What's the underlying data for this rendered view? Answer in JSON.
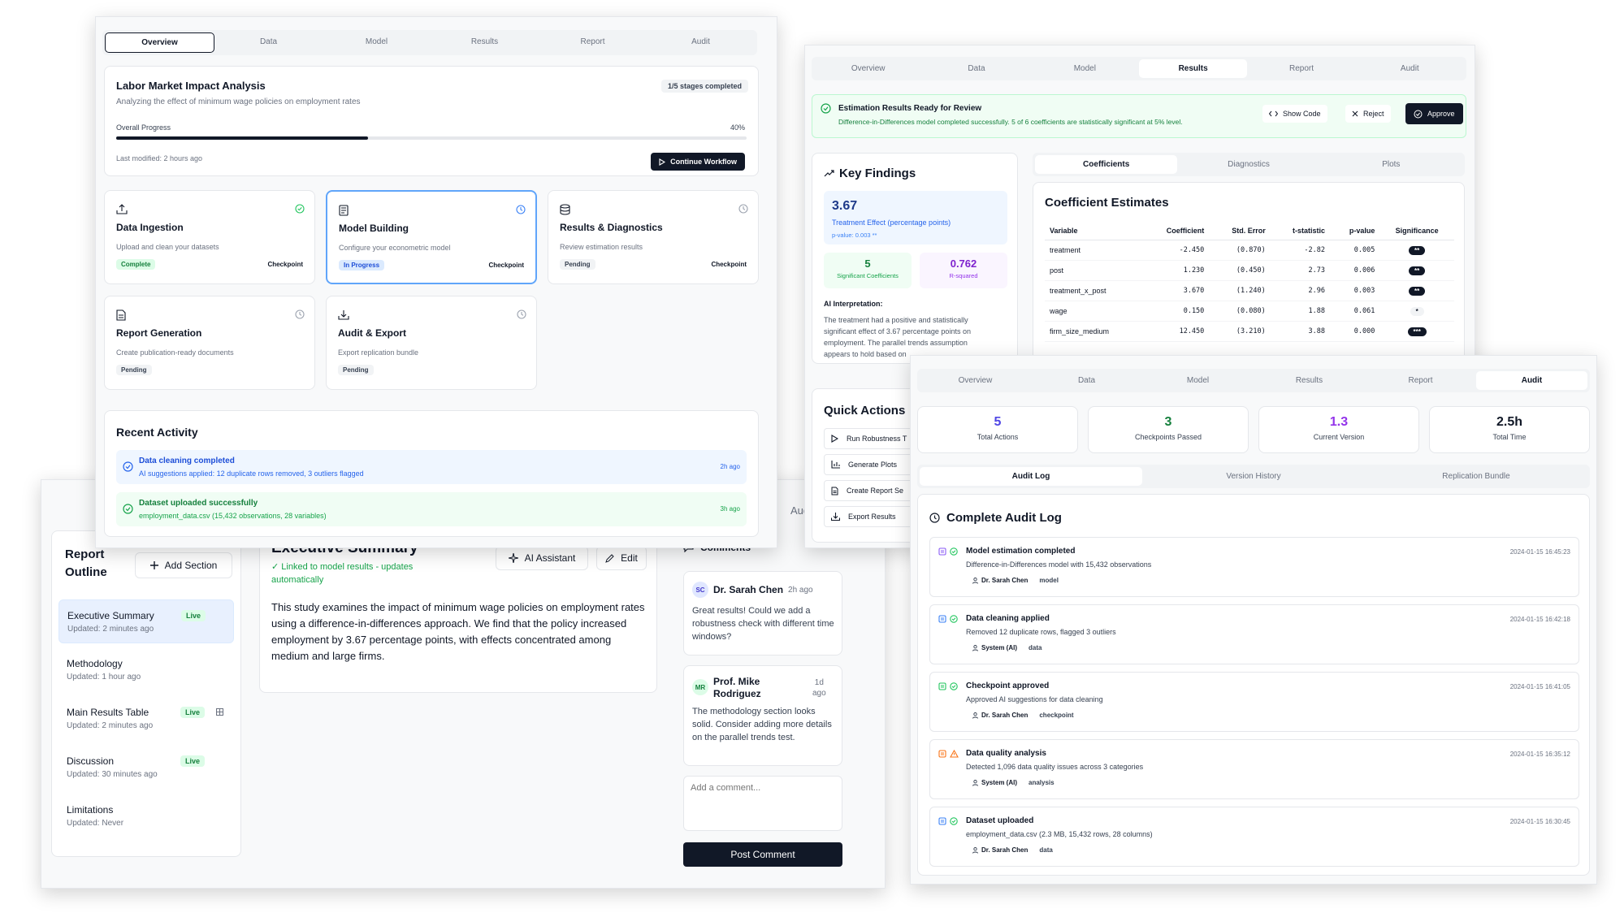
{
  "w1": {
    "tabs": [
      "Overview",
      "Data",
      "Model",
      "Results",
      "Report",
      "Audit"
    ],
    "project": {
      "title": "Labor Market Impact Analysis",
      "subtitle": "Analyzing the effect of minimum wage policies on employment rates",
      "stages_badge": "1/5 stages completed",
      "progress_label": "Overall Progress",
      "progress_pct_text": "40%",
      "progress_value": 0.4,
      "last_modified": "Last modified: 2 hours ago",
      "continue_label": "Continue Workflow"
    },
    "stages": [
      {
        "title": "Data Ingestion",
        "desc": "Upload and clean your datasets",
        "status": "Complete",
        "checkpoint": "Checkpoint"
      },
      {
        "title": "Model Building",
        "desc": "Configure your econometric model",
        "status": "In Progress",
        "checkpoint": "Checkpoint"
      },
      {
        "title": "Results & Diagnostics",
        "desc": "Review estimation results",
        "status": "Pending",
        "checkpoint": "Checkpoint"
      },
      {
        "title": "Report Generation",
        "desc": "Create publication-ready documents",
        "status": "Pending"
      },
      {
        "title": "Audit & Export",
        "desc": "Export replication bundle",
        "status": "Pending"
      }
    ],
    "activity": {
      "title": "Recent Activity",
      "items": [
        {
          "title": "Data cleaning completed",
          "sub": "AI suggestions applied: 12 duplicate rows removed, 3 outliers flagged",
          "time": "2h ago"
        },
        {
          "title": "Dataset uploaded successfully",
          "sub": "employment_data.csv (15,432 observations, 28 variables)",
          "time": "3h ago"
        }
      ]
    }
  },
  "w2": {
    "tabs": [
      "Overview",
      "Data",
      "Model",
      "Results",
      "Report",
      "Audit"
    ],
    "banner": {
      "title": "Estimation Results Ready for Review",
      "sub": "Difference-in-Differences model completed successfully. 5 of 6 coefficients are statistically significant at 5% level.",
      "show_code": "Show Code",
      "reject": "Reject",
      "approve": "Approve"
    },
    "findings": {
      "title": "Key Findings",
      "effect_value": "3.67",
      "effect_label": "Treatment Effect (percentage points)",
      "effect_p": "p-value: 0.003 **",
      "sig_value": "5",
      "sig_label": "Significant Coefficients",
      "r2_value": "0.762",
      "r2_label": "R-squared",
      "ai_title": "AI Interpretation:",
      "ai_text": "The treatment had a positive and statistically significant effect of 3.67 percentage points on employment. The parallel trends assumption appears to hold based on"
    },
    "quick": {
      "title": "Quick Actions",
      "items": [
        "Run Robustness T",
        "Generate Plots",
        "Create Report Se",
        "Export Results"
      ]
    },
    "subtabs": [
      "Coefficients",
      "Diagnostics",
      "Plots"
    ],
    "coef": {
      "title": "Coefficient Estimates",
      "headers": [
        "Variable",
        "Coefficient",
        "Std. Error",
        "t-statistic",
        "p-value",
        "Significance"
      ],
      "rows": [
        [
          "treatment",
          "-2.450",
          "(0.870)",
          "-2.82",
          "0.005",
          "**"
        ],
        [
          "post",
          "1.230",
          "(0.450)",
          "2.73",
          "0.006",
          "**"
        ],
        [
          "treatment_x_post",
          "3.670",
          "(1.240)",
          "2.96",
          "0.003",
          "**"
        ],
        [
          "wage",
          "0.150",
          "(0.080)",
          "1.88",
          "0.061",
          "*"
        ],
        [
          "firm_size_medium",
          "12.450",
          "(3.210)",
          "3.88",
          "0.000",
          "***"
        ]
      ]
    }
  },
  "w3": {
    "partial_tab": "Aud",
    "outline": {
      "title_1": "Report",
      "title_2": "Outline",
      "add_label": "Add Section",
      "sections": [
        {
          "name": "Executive Summary",
          "updated": "Updated: 2 minutes ago",
          "badge": "Live"
        },
        {
          "name": "Methodology",
          "updated": "Updated: 1 hour ago",
          "badge": ""
        },
        {
          "name": "Main Results Table",
          "updated": "Updated: 2 minutes ago",
          "badge": "Live"
        },
        {
          "name": "Discussion",
          "updated": "Updated: 30 minutes ago",
          "badge": "Live"
        },
        {
          "name": "Limitations",
          "updated": "Updated: Never",
          "badge": ""
        }
      ]
    },
    "editor": {
      "title": "Executive Summary",
      "linked_1": "✓ Linked to model results - updates",
      "linked_2": "automatically",
      "ai_label": "AI Assistant",
      "edit_label": "Edit",
      "body": "This study examines the impact of minimum wage policies on employment rates using a difference-in-differences approach. We find that the policy increased employment by 3.67 percentage points, with effects concentrated among medium and large firms."
    },
    "comments": {
      "title": "Comments",
      "items": [
        {
          "initials": "SC",
          "name": "Dr. Sarah Chen",
          "time": "2h ago",
          "text": "Great results! Could we add a robustness check with different time windows?"
        },
        {
          "initials": "MR",
          "name_1": "Prof. Mike",
          "name_2": "Rodriguez",
          "time_1": "1d",
          "time_2": "ago",
          "text": "The methodology section looks solid. Consider adding more details on the parallel trends test."
        }
      ],
      "placeholder": "Add a comment...",
      "post_label": "Post Comment"
    }
  },
  "w4": {
    "tabs": [
      "Overview",
      "Data",
      "Model",
      "Results",
      "Report",
      "Audit"
    ],
    "stats": [
      {
        "value": "5",
        "label": "Total Actions",
        "color": "#4f46e5"
      },
      {
        "value": "3",
        "label": "Checkpoints Passed",
        "color": "#15803d"
      },
      {
        "value": "1.3",
        "label": "Current Version",
        "color": "#9333ea"
      },
      {
        "value": "2.5h",
        "label": "Total Time",
        "color": "#111827"
      }
    ],
    "subtabs": [
      "Audit Log",
      "Version History",
      "Replication Bundle"
    ],
    "log_title": "Complete Audit Log",
    "entries": [
      {
        "title": "Model estimation completed",
        "desc": "Difference-in-Differences model with 15,432 observations",
        "user": "Dr. Sarah Chen",
        "tag": "model",
        "time": "2024-01-15 16:45:23",
        "icon_color": "#8b5cf6"
      },
      {
        "title": "Data cleaning applied",
        "desc": "Removed 12 duplicate rows, flagged 3 outliers",
        "user": "System (AI)",
        "tag": "data",
        "time": "2024-01-15 16:42:18",
        "icon_color": "#3b82f6"
      },
      {
        "title": "Checkpoint approved",
        "desc": "Approved AI suggestions for data cleaning",
        "user": "Dr. Sarah Chen",
        "tag": "checkpoint",
        "time": "2024-01-15 16:41:05",
        "icon_color": "#22c55e"
      },
      {
        "title": "Data quality analysis",
        "desc": "Detected 1,096 data quality issues across 3 categories",
        "user": "System (AI)",
        "tag": "analysis",
        "time": "2024-01-15 16:35:12",
        "icon_color": "#f97316"
      },
      {
        "title": "Dataset uploaded",
        "desc": "employment_data.csv (2.3 MB, 15,432 rows, 28 columns)",
        "user": "Dr. Sarah Chen",
        "tag": "data",
        "time": "2024-01-15 16:30:45",
        "icon_color": "#3b82f6"
      }
    ]
  }
}
